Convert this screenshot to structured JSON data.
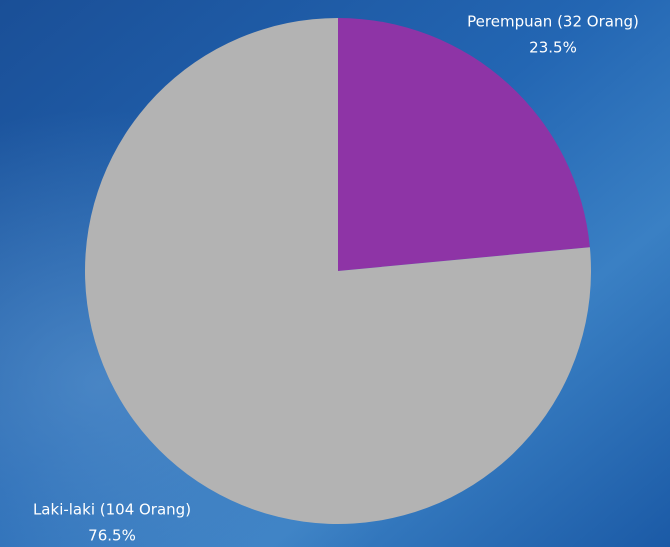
{
  "chart_data": {
    "type": "pie",
    "categories": [
      "Perempuan (32 Orang)",
      "Laki-laki (104 Orang)"
    ],
    "values": [
      23.5,
      76.5
    ],
    "value_labels": [
      "23.5%",
      "76.5%"
    ],
    "colors": [
      "#8e34a6",
      "#b3b3b3"
    ]
  }
}
